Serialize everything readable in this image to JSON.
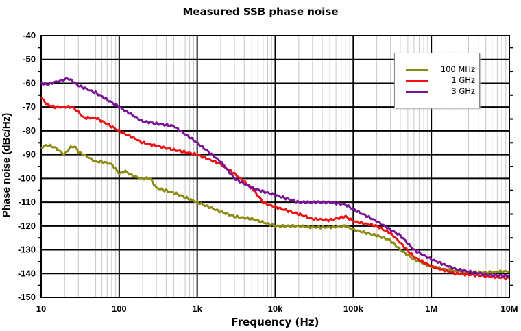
{
  "chart_data": {
    "type": "line",
    "title": "Measured SSB phase noise",
    "xlabel": "Frequency (Hz)",
    "ylabel": "Phase noise (dBc/Hz)",
    "xscale": "log",
    "xlim": [
      10,
      10000000
    ],
    "ylim": [
      -150,
      -40
    ],
    "grid": true,
    "legend_position": "top-right",
    "x_ticks": [
      {
        "v": 10,
        "label": "10"
      },
      {
        "v": 100,
        "label": "100"
      },
      {
        "v": 1000,
        "label": "1k"
      },
      {
        "v": 10000,
        "label": "10k"
      },
      {
        "v": 100000,
        "label": "100k"
      },
      {
        "v": 1000000,
        "label": "1M"
      },
      {
        "v": 10000000,
        "label": "10M"
      }
    ],
    "y_ticks": [
      {
        "v": -40,
        "label": "-40"
      },
      {
        "v": -50,
        "label": "-50"
      },
      {
        "v": -60,
        "label": "-60"
      },
      {
        "v": -70,
        "label": "-70"
      },
      {
        "v": -80,
        "label": "-80"
      },
      {
        "v": -90,
        "label": "-90"
      },
      {
        "v": -100,
        "label": "-100"
      },
      {
        "v": -110,
        "label": "-110"
      },
      {
        "v": -120,
        "label": "-120"
      },
      {
        "v": -130,
        "label": "-130"
      },
      {
        "v": -140,
        "label": "-140"
      },
      {
        "v": -150,
        "label": "-150"
      }
    ],
    "series": [
      {
        "name": "100 MHz",
        "color": "#8b8b12",
        "x": [
          10,
          12,
          15,
          18,
          20,
          22,
          25,
          28,
          30,
          40,
          50,
          60,
          80,
          100,
          120,
          150,
          200,
          250,
          300,
          500,
          1000,
          2000,
          3000,
          5000,
          10000,
          20000,
          30000,
          50000,
          80000,
          100000,
          200000,
          300000,
          400000,
          600000,
          1000000,
          2000000,
          3000000,
          5000000,
          10000000
        ],
        "y": [
          -87,
          -86,
          -87,
          -89,
          -90,
          -88,
          -86.5,
          -87,
          -89,
          -91,
          -93,
          -93,
          -94,
          -98,
          -97,
          -99,
          -100,
          -100,
          -104,
          -106,
          -110,
          -114,
          -116,
          -117,
          -120,
          -120,
          -120.5,
          -120.5,
          -120,
          -121.5,
          -124,
          -126,
          -130,
          -134,
          -137,
          -139,
          -139.5,
          -139.5,
          -139
        ]
      },
      {
        "name": "1 GHz",
        "color": "#ee1111",
        "x": [
          10,
          12,
          15,
          20,
          25,
          30,
          35,
          50,
          100,
          200,
          500,
          1000,
          2000,
          3000,
          5000,
          7000,
          10000,
          20000,
          30000,
          50000,
          80000,
          100000,
          200000,
          300000,
          400000,
          600000,
          1000000,
          2000000,
          5000000,
          10000000
        ],
        "y": [
          -66,
          -69,
          -70,
          -70,
          -70,
          -72,
          -74.5,
          -74.5,
          -80,
          -85,
          -88,
          -90,
          -94,
          -98,
          -104,
          -110,
          -112,
          -115,
          -117,
          -117.5,
          -116,
          -118,
          -120,
          -123,
          -127,
          -133,
          -137,
          -140,
          -141,
          -142
        ]
      },
      {
        "name": "3 GHz",
        "color": "#7a1496",
        "x": [
          10,
          12,
          15,
          20,
          22,
          25,
          30,
          50,
          100,
          200,
          300,
          500,
          1000,
          2000,
          3000,
          5000,
          10000,
          20000,
          50000,
          80000,
          100000,
          200000,
          400000,
          600000,
          1000000,
          2000000,
          5000000,
          10000000
        ],
        "y": [
          -60,
          -60.5,
          -59.5,
          -58.5,
          -58,
          -59,
          -61,
          -64,
          -70,
          -76,
          -77,
          -78,
          -85,
          -93,
          -100,
          -104,
          -107,
          -110,
          -110,
          -111,
          -113,
          -118,
          -124,
          -130,
          -134,
          -138,
          -140.5,
          -141
        ]
      }
    ]
  }
}
